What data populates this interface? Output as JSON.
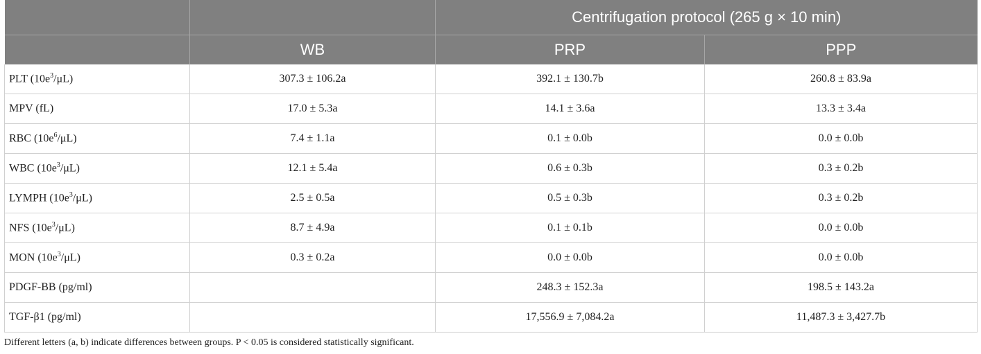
{
  "table": {
    "group_header": "Centrifugation protocol (265 g × 10 min)",
    "columns": [
      "WB",
      "PRP",
      "PPP"
    ],
    "rows": [
      {
        "label": {
          "text": "PLT (10e",
          "sup": "3",
          "after": "/μL)"
        },
        "wb": "307.3 ± 106.2a",
        "prp": "392.1 ± 130.7b",
        "ppp": "260.8 ± 83.9a"
      },
      {
        "label": {
          "text": "MPV (fL)"
        },
        "wb": "17.0 ± 5.3a",
        "prp": "14.1 ± 3.6a",
        "ppp": "13.3 ± 3.4a"
      },
      {
        "label": {
          "text": "RBC (10e",
          "sup": "6",
          "after": "/μL)"
        },
        "wb": "7.4 ± 1.1a",
        "prp": "0.1 ± 0.0b",
        "ppp": "0.0 ± 0.0b"
      },
      {
        "label": {
          "text": "WBC (10e",
          "sup": "3",
          "after": "/μL)"
        },
        "wb": "12.1 ± 5.4a",
        "prp": "0.6 ± 0.3b",
        "ppp": "0.3 ± 0.2b"
      },
      {
        "label": {
          "text": "LYMPH (10e",
          "sup": "3",
          "after": "/μL)"
        },
        "wb": "2.5 ± 0.5a",
        "prp": "0.5 ± 0.3b",
        "ppp": "0.3 ± 0.2b"
      },
      {
        "label": {
          "text": "NFS (10e",
          "sup": "3",
          "after": "/μL)"
        },
        "wb": "8.7 ± 4.9a",
        "prp": "0.1 ± 0.1b",
        "ppp": "0.0 ± 0.0b"
      },
      {
        "label": {
          "text": "MON (10e",
          "sup": "3",
          "after": "/μL)"
        },
        "wb": "0.3 ± 0.2a",
        "prp": "0.0 ± 0.0b",
        "ppp": "0.0 ± 0.0b"
      },
      {
        "label": {
          "text": "PDGF-BB (pg/ml)"
        },
        "prp": "248.3 ± 152.3a",
        "ppp": "198.5 ± 143.2a"
      },
      {
        "label": {
          "text": "TGF-β1 (pg/ml)"
        },
        "prp": "17,556.9 ± 7,084.2a",
        "ppp": "11,487.3 ± 3,427.7b"
      }
    ],
    "footnote": "Different letters (a, b) indicate differences between groups. P < 0.05 is considered statistically significant."
  }
}
